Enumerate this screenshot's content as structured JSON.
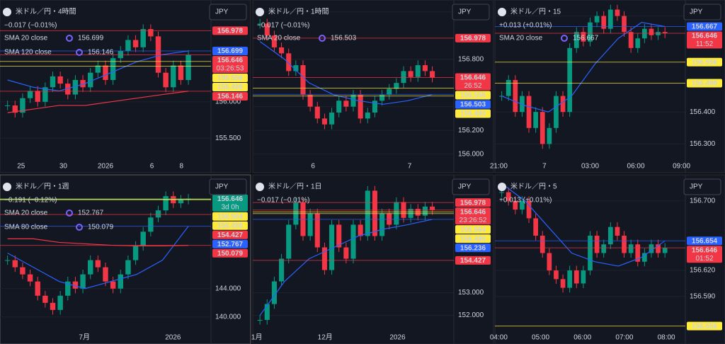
{
  "panels": [
    {
      "title": "米ドル／円・4時間",
      "currency": "JPY",
      "change": "−0.017 (−0.01%)",
      "change_color": "#f23645",
      "indicators": [
        {
          "name": "SMA 20 close",
          "value": "156.699",
          "color": "#2962ff"
        },
        {
          "name": "SMA 120 close",
          "value": "156.146",
          "color": "#f23645"
        }
      ],
      "ylim": [
        155.2,
        157.4
      ],
      "yticks": [
        {
          "value": 155.5,
          "label": "155.500"
        },
        {
          "value": 156,
          "label": "156.000"
        }
      ],
      "tags": [
        {
          "value": 156.978,
          "label": "156.978",
          "color": "#f23645"
        },
        {
          "value": 156.699,
          "label": "156.699",
          "color": "#2962ff"
        },
        {
          "value": 156.646,
          "label": "156.646",
          "color": "#f23645",
          "timer": "03:26:53"
        },
        {
          "value": 156.556,
          "label": "156.556",
          "color": "#ffeb3b"
        },
        {
          "value": 156.49,
          "label": "156.490",
          "color": "#ffeb3b"
        },
        {
          "value": 156.146,
          "label": "156.146",
          "color": "#f23645"
        }
      ],
      "x_labels": [
        "25",
        "30",
        "2026",
        "6",
        "8"
      ],
      "closes": [
        155.95,
        155.85,
        156.05,
        156.15,
        156.0,
        156.2,
        156.35,
        156.25,
        156.1,
        156.3,
        156.2,
        156.4,
        156.5,
        156.3,
        156.6,
        156.7,
        156.85,
        156.75,
        157.0,
        156.9,
        156.4,
        156.2,
        156.5,
        156.3,
        156.646
      ],
      "lines": [
        [
          156.3,
          156.2,
          156.15,
          156.25,
          156.4,
          156.55,
          156.65,
          156.699
        ],
        [
          155.85,
          155.9,
          155.95,
          155.95,
          156.0,
          156.05,
          156.1,
          156.146
        ]
      ]
    },
    {
      "title": "米ドル／円・1時間",
      "currency": "JPY",
      "change": "−0.017 (−0.01%)",
      "change_color": "#f23645",
      "indicators": [
        {
          "name": "SMA 20 close",
          "value": "156.503",
          "color": "#2962ff"
        }
      ],
      "ylim": [
        155.95,
        157.3
      ],
      "yticks": [
        {
          "value": 157.2,
          "label": "157.200"
        },
        {
          "value": 156.8,
          "label": "156.800"
        },
        {
          "value": 156.4,
          "label": "156.400"
        },
        {
          "value": 156.2,
          "label": "156.200"
        },
        {
          "value": 156,
          "label": "156.000"
        }
      ],
      "tags": [
        {
          "value": 156.978,
          "label": "156.978",
          "color": "#f23645"
        },
        {
          "value": 156.646,
          "label": "156.646",
          "color": "#f23645",
          "timer": "26:52"
        },
        {
          "value": 156.556,
          "label": "156.556",
          "color": "#ffeb3b"
        },
        {
          "value": 156.503,
          "label": "156.503",
          "color": "#2962ff"
        },
        {
          "value": 156.49,
          "label": "156.490",
          "color": "#ffeb3b"
        }
      ],
      "x_labels": [
        "6",
        "7"
      ],
      "closes": [
        157.1,
        157.0,
        156.9,
        156.85,
        156.7,
        156.75,
        156.5,
        156.4,
        156.3,
        156.25,
        156.35,
        156.45,
        156.4,
        156.5,
        156.3,
        156.35,
        156.45,
        156.5,
        156.55,
        156.6,
        156.7,
        156.65,
        156.75,
        156.7,
        156.646
      ],
      "lines": [
        [
          156.95,
          156.8,
          156.6,
          156.5,
          156.45,
          156.42,
          156.45,
          156.503
        ]
      ]
    },
    {
      "title": "米ドル／円・15",
      "currency": "JPY",
      "change": "+0.013 (+0.01%)",
      "change_color": "#089981",
      "indicators": [
        {
          "name": "SMA 20 close",
          "value": "156.667",
          "color": "#2962ff"
        }
      ],
      "ylim": [
        156.25,
        156.75
      ],
      "yticks": [
        {
          "value": 156.7,
          "label": "156.700"
        },
        {
          "value": 156.4,
          "label": "156.400"
        },
        {
          "value": 156.3,
          "label": "156.300"
        }
      ],
      "tags": [
        {
          "value": 156.667,
          "label": "156.667",
          "color": "#2962ff"
        },
        {
          "value": 156.646,
          "label": "156.646",
          "color": "#f23645",
          "timer": "11:52"
        },
        {
          "value": 156.556,
          "label": "156.556",
          "color": "#ffeb3b"
        },
        {
          "value": 156.49,
          "label": "156.490",
          "color": "#ffeb3b"
        }
      ],
      "x_labels": [
        "21:00",
        "7",
        "03:00",
        "06:00",
        "09:00"
      ],
      "closes": [
        156.45,
        156.5,
        156.4,
        156.45,
        156.35,
        156.4,
        156.3,
        156.35,
        156.45,
        156.4,
        156.6,
        156.65,
        156.62,
        156.68,
        156.7,
        156.66,
        156.72,
        156.7,
        156.65,
        156.6,
        156.63,
        156.66,
        156.64,
        156.65,
        156.646
      ],
      "lines": [
        [
          156.45,
          156.42,
          156.4,
          156.45,
          156.55,
          156.63,
          156.68,
          156.667
        ]
      ]
    },
    {
      "title": "米ドル／円・1週",
      "currency": "JPY",
      "change": "−0.191 (−0.12%)",
      "change_color": "#f23645",
      "indicators": [
        {
          "name": "SMA 20 close",
          "value": "152.767",
          "color": "#2962ff"
        },
        {
          "name": "SMA 80 close",
          "value": "150.079",
          "color": "#f23645"
        }
      ],
      "ylim": [
        138,
        160
      ],
      "yticks": [
        {
          "value": 144,
          "label": "144.000"
        },
        {
          "value": 140,
          "label": "140.000"
        }
      ],
      "tags": [
        {
          "value": 156.646,
          "label": "156.646",
          "color": "#089981",
          "timer": "3d 0h"
        },
        {
          "value": 156.564,
          "label": "156.564",
          "color": "#ffeb3b"
        },
        {
          "value": 156.49,
          "label": "156.490",
          "color": "#ffeb3b"
        },
        {
          "value": 154.427,
          "label": "154.427",
          "color": "#f23645"
        },
        {
          "value": 152.767,
          "label": "152.767",
          "color": "#2962ff"
        },
        {
          "value": 150.079,
          "label": "150.079",
          "color": "#f23645"
        }
      ],
      "x_labels": [
        "7月",
        "2026"
      ],
      "closes": [
        148,
        147,
        146,
        145,
        143,
        142,
        141,
        143,
        145,
        144,
        146,
        148,
        147,
        145,
        144,
        146,
        148,
        150,
        152,
        154,
        155,
        157,
        156,
        156.5,
        156.646
      ],
      "lines": [
        [
          149,
          147,
          145,
          144,
          145,
          146,
          148,
          152.767
        ],
        [
          151,
          151,
          150.5,
          150.3,
          150.1,
          150,
          150,
          150.079
        ]
      ]
    },
    {
      "title": "米ドル／円・1日",
      "currency": "JPY",
      "change": "−0.017 (−0.01%)",
      "change_color": "#f23645",
      "indicators": [],
      "ylim": [
        151.3,
        158.2
      ],
      "yticks": [
        {
          "value": 153,
          "label": "153.000"
        },
        {
          "value": 152,
          "label": "152.000"
        }
      ],
      "tags": [
        {
          "value": 156.978,
          "label": "156.978",
          "color": "#f23645"
        },
        {
          "value": 156.646,
          "label": "156.646",
          "color": "#f23645",
          "timer": "23:26:52"
        },
        {
          "value": 156.564,
          "label": "156.564",
          "color": "#ffeb3b"
        },
        {
          "value": 156.49,
          "label": "156.490",
          "color": "#ffeb3b"
        },
        {
          "value": 156.236,
          "label": "156.236",
          "color": "#2962ff"
        },
        {
          "value": 154.427,
          "label": "154.427",
          "color": "#f23645"
        }
      ],
      "x_labels": [
        "1月",
        "12月",
        "2026"
      ],
      "closes": [
        151.8,
        152.5,
        153.5,
        154.5,
        156,
        157,
        155.5,
        156.5,
        155,
        154,
        156,
        155,
        154.5,
        156,
        155.5,
        157.5,
        155.5,
        156.5,
        156,
        157,
        156.3,
        156.7,
        156.4,
        156.8,
        156.646
      ],
      "lines": [
        [
          152,
          153.5,
          154.5,
          155,
          155.5,
          155.8,
          156,
          156.236
        ]
      ]
    },
    {
      "title": "米ドル／円・5",
      "currency": "JPY",
      "change": "+0.013 (+0.01%)",
      "change_color": "#089981",
      "indicators": [],
      "ylim": [
        156.55,
        156.73
      ],
      "yticks": [
        {
          "value": 156.7,
          "label": "156.700"
        },
        {
          "value": 156.62,
          "label": "156.620"
        },
        {
          "value": 156.59,
          "label": "156.590"
        }
      ],
      "tags": [
        {
          "value": 156.654,
          "label": "156.654",
          "color": "#2962ff"
        },
        {
          "value": 156.646,
          "label": "156.646",
          "color": "#f23645",
          "timer": "01:52"
        },
        {
          "value": 156.556,
          "label": "156.556",
          "color": "#ffeb3b"
        }
      ],
      "x_labels": [
        "04:00",
        "05:00",
        "06:00",
        "07:00",
        "08:00"
      ],
      "closes": [
        156.71,
        156.7,
        156.69,
        156.7,
        156.68,
        156.66,
        156.64,
        156.62,
        156.61,
        156.6,
        156.62,
        156.605,
        156.62,
        156.66,
        156.64,
        156.65,
        156.67,
        156.66,
        156.64,
        156.65,
        156.63,
        156.64,
        156.65,
        156.64,
        156.646
      ],
      "lines": [
        [
          156.72,
          156.7,
          156.67,
          156.64,
          156.63,
          156.625,
          156.635,
          156.654
        ]
      ]
    }
  ]
}
